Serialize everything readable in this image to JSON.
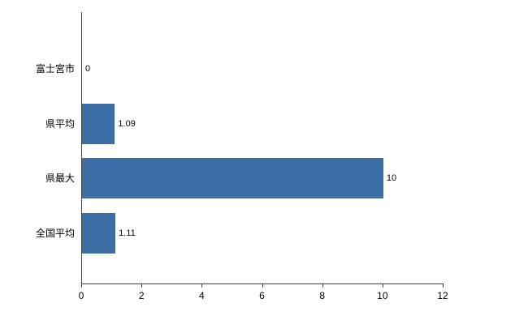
{
  "chart_data": {
    "type": "bar",
    "orientation": "horizontal",
    "categories": [
      "富士宮市",
      "県平均",
      "県最大",
      "全国平均"
    ],
    "values": [
      0,
      1.09,
      10,
      1.11
    ],
    "value_labels": [
      "0",
      "1.09",
      "10",
      "1.11"
    ],
    "xlim": [
      0,
      12
    ],
    "xticks": [
      0,
      2,
      4,
      6,
      8,
      10,
      12
    ],
    "bar_color": "#3A6EA5",
    "axis_color": "#404040",
    "grid": false,
    "legend_position": "none",
    "title": "",
    "xlabel": "",
    "ylabel": ""
  }
}
